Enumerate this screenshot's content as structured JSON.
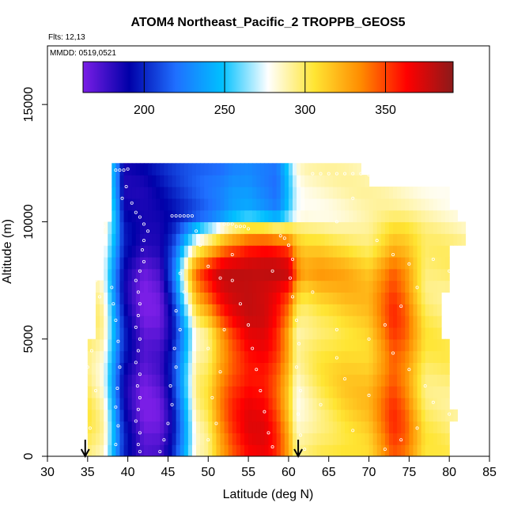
{
  "chart_data": {
    "type": "heatmap",
    "title": "ATOM4 Northeast_Pacific_2 TROPPB_GEOS5",
    "flights_text": "Flts: 12,13",
    "mmdd_text": "MMDD: 0519,0521",
    "xlabel": "Latitude (deg N)",
    "ylabel": "Altitude (m)",
    "xlim": [
      30,
      85
    ],
    "ylim": [
      0,
      17500
    ],
    "x_ticks": [
      30,
      35,
      40,
      45,
      50,
      55,
      60,
      65,
      70,
      75,
      80,
      85
    ],
    "y_ticks": [
      0,
      5000,
      10000,
      15000
    ],
    "colorbar": {
      "min": 162,
      "max": 392,
      "ticks": [
        200,
        250,
        300,
        350
      ],
      "colors": [
        "#7a1ee6",
        "#0000a8",
        "#1f6fff",
        "#00c0ff",
        "#ffffff",
        "#ffe533",
        "#ff8c00",
        "#ff0000",
        "#8b1a1a"
      ]
    },
    "arrows_lat": [
      34.7,
      61.2
    ],
    "alt_step": 500,
    "altitudes": [
      0,
      500,
      1000,
      1500,
      2000,
      2500,
      3000,
      3500,
      4000,
      4500,
      5000,
      5500,
      6000,
      6500,
      7000,
      7500,
      8000,
      8500,
      9000,
      9500,
      10000,
      10500,
      11000,
      11500,
      12000
    ],
    "lat_ranges": [
      [
        35,
        80
      ],
      [
        35,
        80
      ],
      [
        35,
        80
      ],
      [
        35,
        81
      ],
      [
        35,
        80
      ],
      [
        35,
        80
      ],
      [
        35,
        80
      ],
      [
        35,
        80
      ],
      [
        35,
        80
      ],
      [
        35,
        80
      ],
      [
        36,
        79
      ],
      [
        36,
        79
      ],
      [
        36,
        79
      ],
      [
        36,
        79
      ],
      [
        36,
        80
      ],
      [
        37,
        80
      ],
      [
        37,
        80
      ],
      [
        37,
        80
      ],
      [
        37,
        82
      ],
      [
        37,
        82
      ],
      [
        38,
        81
      ],
      [
        38,
        80
      ],
      [
        38,
        80
      ],
      [
        38,
        70
      ],
      [
        38,
        69
      ]
    ],
    "profile_lats": [
      35,
      37,
      38.5,
      39.5,
      42,
      44,
      45.5,
      47,
      48.5,
      50,
      51.5,
      53,
      55,
      57,
      58.5,
      60,
      61,
      62,
      64,
      67,
      70,
      73,
      74.5,
      77,
      82
    ],
    "profile_values_low": [
      300,
      285,
      230,
      195,
      165,
      170,
      195,
      240,
      290,
      300,
      330,
      350,
      365,
      365,
      350,
      320,
      285,
      290,
      300,
      310,
      315,
      350,
      340,
      300,
      295
    ],
    "profile_values_high": [
      285,
      280,
      240,
      190,
      190,
      195,
      200,
      205,
      210,
      215,
      220,
      230,
      235,
      230,
      225,
      255,
      280,
      285,
      285,
      285,
      285,
      285,
      285,
      285,
      285
    ],
    "jet_band": {
      "alt_min": 5000,
      "alt_max": 10000,
      "lat_profile": [
        44,
        46,
        48,
        50,
        52,
        55,
        58,
        60,
        61,
        62,
        64,
        66,
        68,
        70
      ],
      "weight": [
        0,
        0.1,
        0.4,
        0.7,
        0.9,
        1.0,
        1.0,
        0.9,
        0.55,
        0.35,
        0.3,
        0.2,
        0.1,
        0
      ],
      "value": 385
    },
    "obs_points": [
      [
        38.5,
        12200
      ],
      [
        39,
        12200
      ],
      [
        39.5,
        12200
      ],
      [
        40,
        12250
      ],
      [
        39.8,
        11500
      ],
      [
        39.3,
        11000
      ],
      [
        40.5,
        10800
      ],
      [
        41,
        10400
      ],
      [
        41.5,
        10200
      ],
      [
        42,
        9900
      ],
      [
        42.5,
        9600
      ],
      [
        42,
        9200
      ],
      [
        41.8,
        8800
      ],
      [
        42,
        8300
      ],
      [
        41.5,
        7900
      ],
      [
        41,
        7500
      ],
      [
        41.3,
        7000
      ],
      [
        41.5,
        6500
      ],
      [
        41.3,
        6000
      ],
      [
        41,
        5500
      ],
      [
        41.5,
        5000
      ],
      [
        41.3,
        4500
      ],
      [
        41,
        4000
      ],
      [
        41.5,
        3500
      ],
      [
        41.2,
        3000
      ],
      [
        41.5,
        2500
      ],
      [
        41.3,
        2000
      ],
      [
        41,
        1500
      ],
      [
        41.5,
        1000
      ],
      [
        41.3,
        500
      ],
      [
        41.5,
        200
      ],
      [
        35,
        3800
      ],
      [
        35.5,
        4500
      ],
      [
        35.2,
        5100
      ],
      [
        36,
        2800
      ],
      [
        34.5,
        2000
      ],
      [
        35.3,
        1200
      ],
      [
        34.8,
        600
      ],
      [
        37.5,
        10300
      ],
      [
        37,
        9800
      ],
      [
        38,
        7200
      ],
      [
        38.2,
        6500
      ],
      [
        38.5,
        5800
      ],
      [
        38.8,
        4900
      ],
      [
        39,
        3800
      ],
      [
        38.7,
        2900
      ],
      [
        38.5,
        2100
      ],
      [
        38.8,
        1300
      ],
      [
        38.5,
        500
      ],
      [
        44,
        200
      ],
      [
        44.5,
        700
      ],
      [
        45,
        1400
      ],
      [
        45.5,
        2200
      ],
      [
        45.3,
        3000
      ],
      [
        46,
        3800
      ],
      [
        45.8,
        4600
      ],
      [
        46.5,
        5400
      ],
      [
        46,
        6200
      ],
      [
        47,
        7000
      ],
      [
        46.5,
        7800
      ],
      [
        45.5,
        10250
      ],
      [
        46,
        10250
      ],
      [
        46.5,
        10250
      ],
      [
        47,
        10250
      ],
      [
        47.5,
        10250
      ],
      [
        48,
        10250
      ],
      [
        50,
        8100
      ],
      [
        51.5,
        7600
      ],
      [
        49,
        9000
      ],
      [
        48.5,
        9600
      ],
      [
        52,
        9900
      ],
      [
        52.5,
        9900
      ],
      [
        53,
        9900
      ],
      [
        53.5,
        9800
      ],
      [
        54,
        9800
      ],
      [
        54.5,
        9800
      ],
      [
        55,
        9700
      ],
      [
        53,
        7500
      ],
      [
        54,
        6500
      ],
      [
        55,
        5600
      ],
      [
        55.5,
        4600
      ],
      [
        56,
        3700
      ],
      [
        56.5,
        2800
      ],
      [
        57,
        1900
      ],
      [
        57.5,
        1000
      ],
      [
        58,
        400
      ],
      [
        59,
        9400
      ],
      [
        59.5,
        9300
      ],
      [
        60,
        9000
      ],
      [
        60.5,
        8400
      ],
      [
        60.2,
        7600
      ],
      [
        60.5,
        6800
      ],
      [
        61,
        5800
      ],
      [
        61.3,
        4800
      ],
      [
        61,
        3800
      ],
      [
        61.5,
        2800
      ],
      [
        61.2,
        1800
      ],
      [
        61.5,
        900
      ],
      [
        62,
        300
      ],
      [
        63,
        12050
      ],
      [
        64,
        12050
      ],
      [
        65,
        12050
      ],
      [
        66,
        12050
      ],
      [
        67,
        12050
      ],
      [
        68,
        12050
      ],
      [
        69,
        12050
      ],
      [
        70,
        12000
      ],
      [
        68,
        11000
      ],
      [
        66,
        10000
      ],
      [
        71,
        9200
      ],
      [
        73,
        8600
      ],
      [
        75,
        8200
      ],
      [
        78,
        8400
      ],
      [
        80,
        7900
      ],
      [
        76,
        7200
      ],
      [
        74,
        6400
      ],
      [
        72,
        5600
      ],
      [
        70,
        5000
      ],
      [
        73,
        4400
      ],
      [
        75,
        3700
      ],
      [
        77,
        3000
      ],
      [
        78,
        2300
      ],
      [
        80,
        1800
      ],
      [
        76,
        1200
      ],
      [
        74,
        700
      ],
      [
        72,
        300
      ],
      [
        50,
        700
      ],
      [
        51,
        1400
      ],
      [
        50.5,
        2500
      ],
      [
        51.5,
        3600
      ],
      [
        50,
        4600
      ],
      [
        52,
        5400
      ],
      [
        53,
        8600
      ],
      [
        58,
        7900
      ],
      [
        63,
        7000
      ],
      [
        66,
        5400
      ],
      [
        67,
        3300
      ],
      [
        64,
        2200
      ],
      [
        68,
        1100
      ],
      [
        66,
        4200
      ],
      [
        70,
        2600
      ],
      [
        36.5,
        6800
      ],
      [
        36,
        7500
      ]
    ]
  }
}
